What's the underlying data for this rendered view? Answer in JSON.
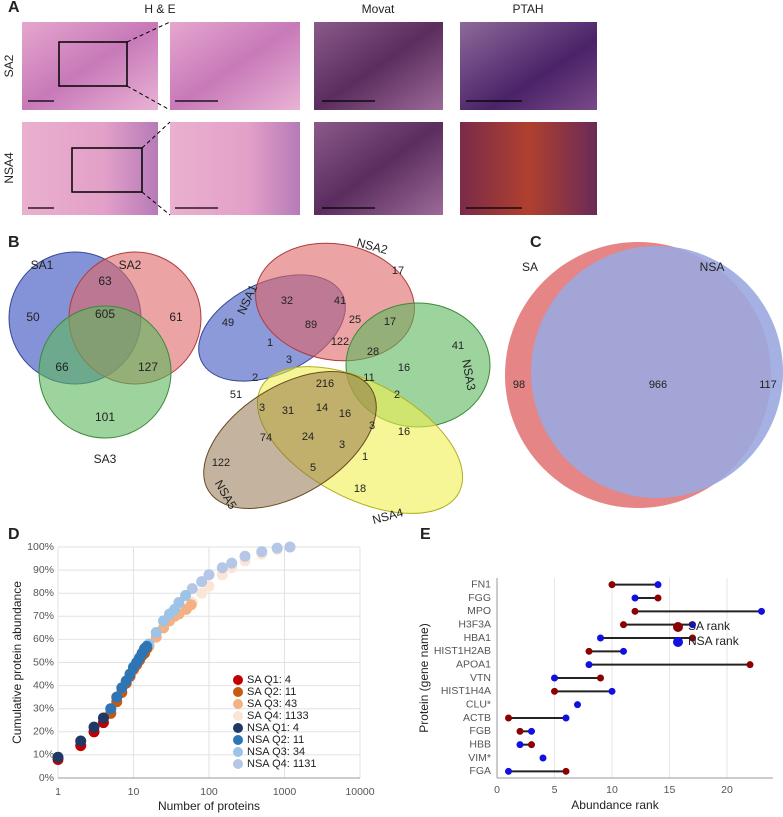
{
  "panel_labels": [
    "A",
    "B",
    "C",
    "D",
    "E"
  ],
  "panel_a": {
    "columns": [
      "H & E",
      "Movat",
      "PTAH"
    ],
    "rows": [
      "SA2",
      "NSA4"
    ]
  },
  "panel_b": {
    "venn3": {
      "sets": [
        "SA1",
        "SA2",
        "SA3"
      ],
      "counts": [
        50,
        63,
        61,
        605,
        66,
        127,
        101
      ]
    },
    "venn5": {
      "sets": [
        "NSA1",
        "NSA2",
        "NSA3",
        "NSA4",
        "NSA5"
      ],
      "counts": [
        17,
        32,
        41,
        49,
        89,
        25,
        17,
        122,
        1,
        41,
        2,
        28,
        3,
        16,
        216,
        11,
        3,
        51,
        2,
        31,
        14,
        16,
        16,
        3,
        74,
        24,
        3,
        122,
        5,
        1,
        18
      ]
    }
  },
  "panel_c": {
    "sets": [
      "SA",
      "NSA"
    ],
    "counts": [
      98,
      966,
      117
    ]
  },
  "chart_data": [
    {
      "type": "scatter",
      "xlabel": "Number of proteins",
      "ylabel": "Cumulative protein abundance",
      "xscale": "log",
      "xlim": [
        1,
        10000
      ],
      "xticks": [
        1,
        10,
        100,
        1000,
        10000
      ],
      "ylim": [
        0,
        100
      ],
      "yticks": [
        {
          "value": 0,
          "label": "0%"
        },
        {
          "value": 10,
          "label": "10%"
        },
        {
          "value": 20,
          "label": "20%"
        },
        {
          "value": 30,
          "label": "30%"
        },
        {
          "value": 40,
          "label": "40%"
        },
        {
          "value": 50,
          "label": "50%"
        },
        {
          "value": 60,
          "label": "60%"
        },
        {
          "value": 70,
          "label": "70%"
        },
        {
          "value": 80,
          "label": "80%"
        },
        {
          "value": 90,
          "label": "90%"
        },
        {
          "value": 100,
          "label": "100%"
        }
      ],
      "grid": true,
      "legend": "lower right",
      "series": [
        {
          "name": "SA Q1: 4",
          "color": "#c00000",
          "x": [
            1,
            2,
            3,
            4
          ],
          "values": [
            8,
            14,
            20,
            24
          ]
        },
        {
          "name": "SA Q2: 11",
          "color": "#c55a11",
          "x": [
            5,
            6,
            7,
            8,
            9,
            10,
            11,
            12,
            13,
            14,
            15
          ],
          "values": [
            28,
            33,
            37,
            41,
            44,
            47,
            49,
            51,
            53,
            54,
            56
          ]
        },
        {
          "name": "SA Q3: 43",
          "color": "#f4b183",
          "x": [
            16,
            20,
            25,
            30,
            35,
            40,
            50,
            58
          ],
          "values": [
            57,
            61,
            65,
            68,
            70,
            71,
            73,
            75
          ]
        },
        {
          "name": "SA Q4: 1133",
          "color": "#fbe5d6",
          "x": [
            60,
            80,
            100,
            150,
            200,
            300,
            500,
            800,
            1191
          ],
          "values": [
            76,
            80,
            83,
            88,
            91,
            94,
            97,
            99,
            100
          ]
        },
        {
          "name": "NSA Q1: 4",
          "color": "#1f3864",
          "x": [
            1,
            2,
            3,
            4
          ],
          "values": [
            9,
            16,
            22,
            26
          ]
        },
        {
          "name": "NSA Q2: 11",
          "color": "#2e75b6",
          "x": [
            5,
            6,
            7,
            8,
            9,
            10,
            11,
            12,
            13,
            14,
            15
          ],
          "values": [
            30,
            35,
            39,
            42,
            45,
            48,
            50,
            52,
            54,
            56,
            57
          ]
        },
        {
          "name": "NSA Q3: 34",
          "color": "#9dc3e6",
          "x": [
            16,
            20,
            25,
            30,
            35,
            40,
            49
          ],
          "values": [
            58,
            63,
            68,
            71,
            73,
            76,
            79
          ]
        },
        {
          "name": "NSA Q4: 1131",
          "color": "#b4c7e7",
          "x": [
            60,
            80,
            100,
            150,
            200,
            300,
            500,
            800,
            1180
          ],
          "values": [
            82,
            85,
            88,
            91,
            93,
            96,
            98,
            99.5,
            100
          ]
        }
      ]
    },
    {
      "type": "dumbbell",
      "xlabel": "Abundance rank",
      "ylabel": "Protein (gene name)",
      "categories": [
        "FN1",
        "FGG",
        "MPO",
        "H3F3A",
        "HBA1",
        "HIST1H2AB",
        "APOA1",
        "VTN",
        "HIST1H4A",
        "CLU*",
        "ACTB",
        "FGB",
        "HBB",
        "VIM*",
        "FGA"
      ],
      "xlim": [
        0,
        24
      ],
      "xticks": [
        0,
        5,
        10,
        15,
        20
      ],
      "grid": true,
      "legend": "upper right",
      "series": [
        {
          "name": "SA rank",
          "color": "#8b0000",
          "values": [
            10,
            14,
            12,
            11,
            17,
            8,
            22,
            9,
            5,
            null,
            1,
            2,
            3,
            null,
            6
          ]
        },
        {
          "name": "NSA rank",
          "color": "#1010e0",
          "values": [
            14,
            12,
            23,
            17,
            9,
            11,
            8,
            5,
            10,
            7,
            6,
            3,
            2,
            4,
            1
          ]
        }
      ]
    }
  ]
}
